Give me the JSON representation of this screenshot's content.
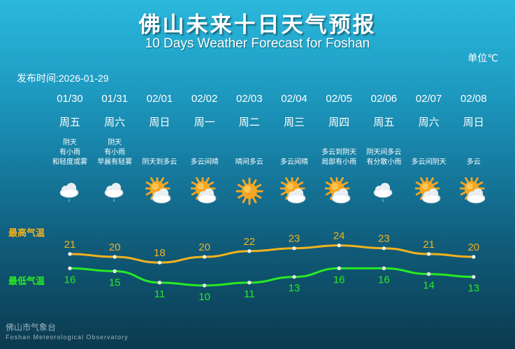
{
  "header": {
    "title": "佛山未来十日天气预报",
    "subtitle": "10 Days Weather Forecast for Foshan",
    "unit": "单位℃",
    "publish_label": "发布时间:",
    "publish_date": "2026-01-29"
  },
  "labels": {
    "high": "最高气温",
    "low": "最低气温"
  },
  "days": [
    {
      "date": "01/30",
      "weekday": "周五",
      "desc": [
        "阴天",
        "有小雨",
        "和轻度或雾"
      ],
      "icon": "cloud-rain-icon"
    },
    {
      "date": "01/31",
      "weekday": "周六",
      "desc": [
        "阴天",
        "有小雨",
        "早晨有轻雾"
      ],
      "icon": "cloud-rain-icon"
    },
    {
      "date": "02/01",
      "weekday": "周日",
      "desc": [
        "阴天到多云"
      ],
      "icon": "sun-cloud-icon"
    },
    {
      "date": "02/02",
      "weekday": "周一",
      "desc": [
        "多云间晴"
      ],
      "icon": "sun-cloud-icon"
    },
    {
      "date": "02/03",
      "weekday": "周二",
      "desc": [
        "晴间多云"
      ],
      "icon": "sun-icon"
    },
    {
      "date": "02/04",
      "weekday": "周三",
      "desc": [
        "多云间晴"
      ],
      "icon": "sun-cloud-icon"
    },
    {
      "date": "02/05",
      "weekday": "周四",
      "desc": [
        "多云到阴天",
        "局部有小雨"
      ],
      "icon": "sun-cloud-icon"
    },
    {
      "date": "02/06",
      "weekday": "周五",
      "desc": [
        "阴天间多云",
        "有分散小雨"
      ],
      "icon": "cloud-rain-icon"
    },
    {
      "date": "02/07",
      "weekday": "周六",
      "desc": [
        "多云间阴天"
      ],
      "icon": "sun-cloud-icon"
    },
    {
      "date": "02/08",
      "weekday": "周日",
      "desc": [
        "多云"
      ],
      "icon": "sun-cloud-icon"
    }
  ],
  "chart_data": {
    "type": "line",
    "x": [
      "01/30",
      "01/31",
      "02/01",
      "02/02",
      "02/03",
      "02/04",
      "02/05",
      "02/06",
      "02/07",
      "02/08"
    ],
    "series": [
      {
        "name": "最高气温",
        "values": [
          21,
          20,
          18,
          20,
          22,
          23,
          24,
          23,
          21,
          20
        ],
        "color": "#f2b21e"
      },
      {
        "name": "最低气温",
        "values": [
          16,
          15,
          11,
          10,
          11,
          13,
          16,
          16,
          14,
          13
        ],
        "color": "#28ea22"
      }
    ],
    "grid": false,
    "legend": "left"
  },
  "footer": {
    "name_cn": "佛山市气象台",
    "name_en": "Foshan Meteorological Observatory"
  },
  "colors": {
    "high": "#f2b21e",
    "low": "#28ea22",
    "sun": "#f5a623",
    "cloud": "#e8eef2"
  }
}
